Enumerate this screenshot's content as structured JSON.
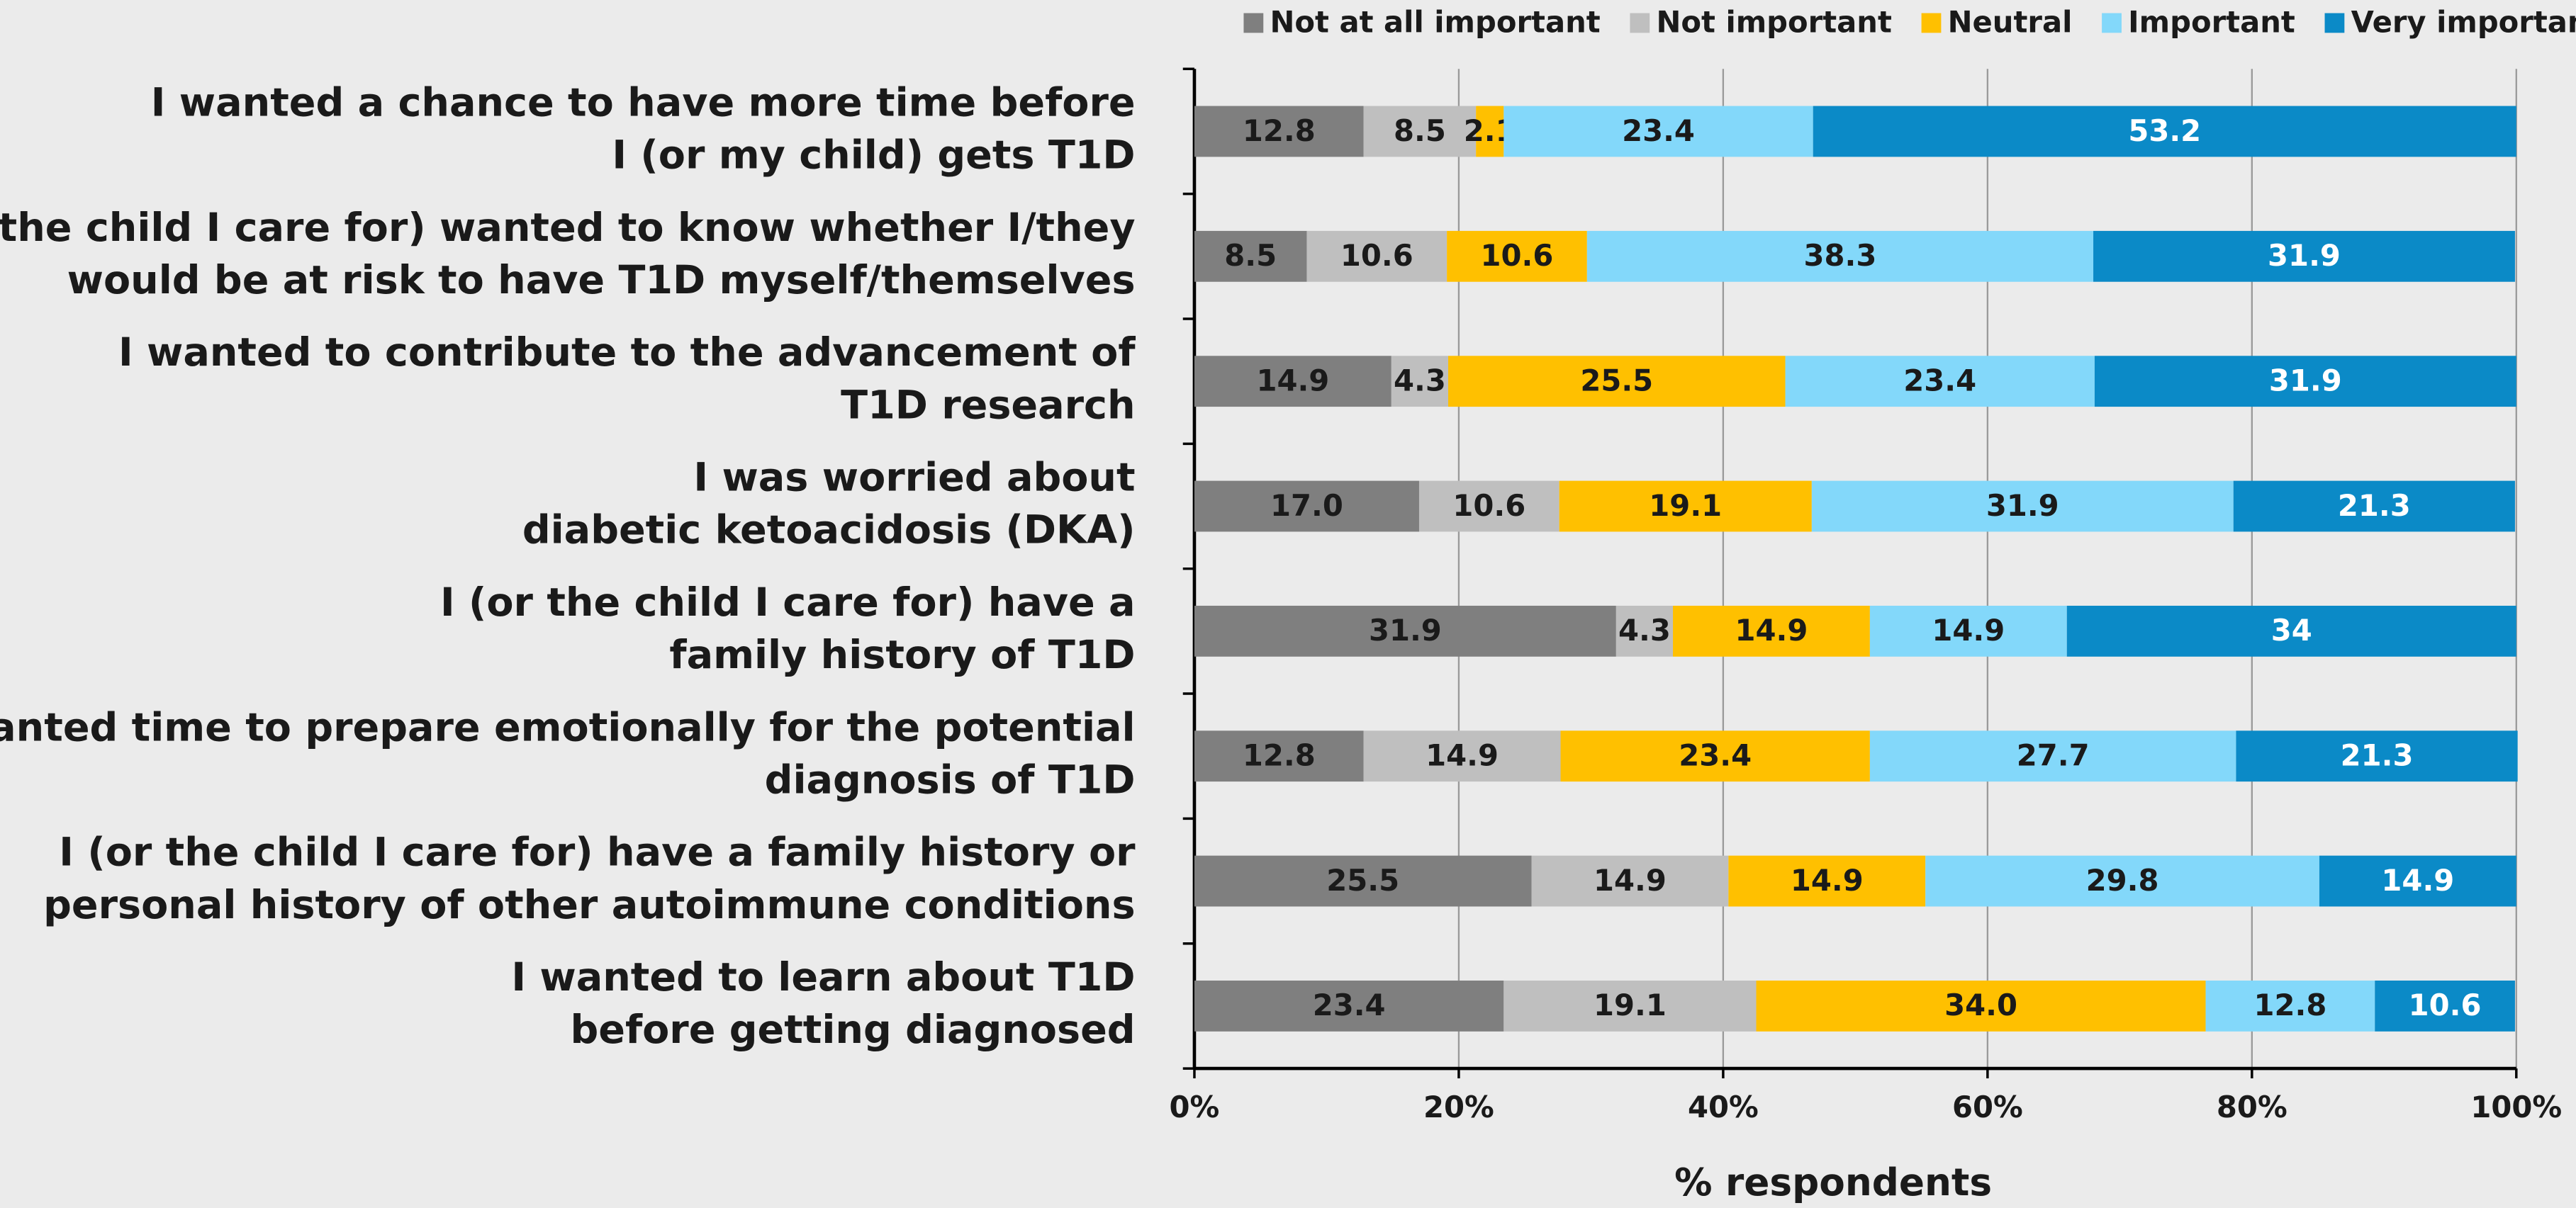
{
  "chart_data": {
    "type": "stacked-bar-horizontal",
    "x_label": "% respondents",
    "categories": [
      [
        "I wanted a chance to have more time before",
        "I (or my child) gets T1D"
      ],
      [
        "I (or the child I care for) wanted to know whether I/they",
        "would be at risk to have T1D myself/themselves"
      ],
      [
        "I wanted to contribute to the advancement of",
        "T1D research"
      ],
      [
        "I was worried about",
        "diabetic ketoacidosis (DKA)"
      ],
      [
        "I (or the child I care for) have a",
        "family history of T1D"
      ],
      [
        "I wanted time to prepare emotionally for the potential",
        "diagnosis of T1D"
      ],
      [
        "I (or the child I care for) have a family history or",
        "personal history of other autoimmune conditions"
      ],
      [
        "I wanted to learn about T1D",
        "before getting diagnosed"
      ]
    ],
    "series": [
      {
        "name": "Not at all important",
        "color": "#7f7f7f",
        "label_color": "#1a1a1a",
        "values": [
          12.8,
          8.5,
          14.9,
          17.0,
          31.9,
          12.8,
          25.5,
          23.4
        ],
        "value_labels": [
          "12.8",
          "8.5",
          "14.9",
          "17.0",
          "31.9",
          "12.8",
          "25.5",
          "23.4"
        ]
      },
      {
        "name": "Not important",
        "color": "#bfbfbf",
        "label_color": "#1a1a1a",
        "values": [
          8.5,
          10.6,
          4.3,
          10.6,
          4.3,
          14.9,
          14.9,
          19.1
        ],
        "value_labels": [
          "8.5",
          "10.6",
          "4.3",
          "10.6",
          "4.3",
          "14.9",
          "14.9",
          "19.1"
        ]
      },
      {
        "name": "Neutral",
        "color": "#ffc000",
        "label_color": "#1a1a1a",
        "values": [
          2.1,
          10.6,
          25.5,
          19.1,
          14.9,
          23.4,
          14.9,
          34.0
        ],
        "value_labels": [
          "2.1",
          "10.6",
          "25.5",
          "19.1",
          "14.9",
          "23.4",
          "14.9",
          "34.0"
        ]
      },
      {
        "name": "Important",
        "color": "#83d8fa",
        "label_color": "#1a1a1a",
        "values": [
          23.4,
          38.3,
          23.4,
          31.9,
          14.9,
          27.7,
          29.8,
          12.8
        ],
        "value_labels": [
          "23.4",
          "38.3",
          "23.4",
          "31.9",
          "14.9",
          "27.7",
          "29.8",
          "12.8"
        ]
      },
      {
        "name": "Very important",
        "color": "#0b8ac7",
        "label_color": "#ffffff",
        "values": [
          53.2,
          31.9,
          31.9,
          21.3,
          34,
          21.3,
          14.9,
          10.6
        ],
        "value_labels": [
          "53.2",
          "31.9",
          "31.9",
          "21.3",
          "34",
          "21.3",
          "14.9",
          "10.6"
        ]
      }
    ],
    "xlim": [
      0,
      100
    ],
    "xticks": [
      {
        "value": 0,
        "label": "0%"
      },
      {
        "value": 20,
        "label": "20%"
      },
      {
        "value": 40,
        "label": "40%"
      },
      {
        "value": 60,
        "label": "60%"
      },
      {
        "value": 80,
        "label": "80%"
      },
      {
        "value": 100,
        "label": "100%"
      }
    ],
    "grid": true,
    "legend": "top"
  }
}
